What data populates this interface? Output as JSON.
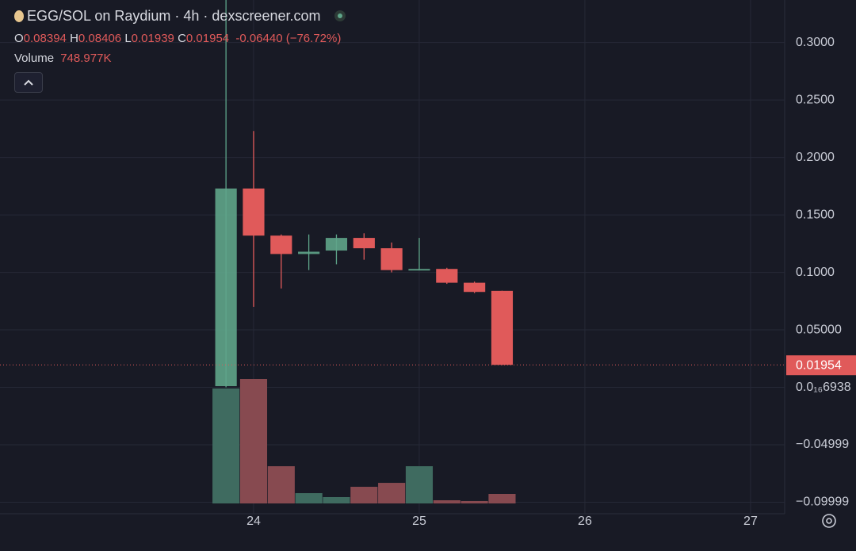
{
  "chart_data": {
    "type": "candlestick",
    "title": "EGG/SOL on Raydium · 4h · dexscreener.com",
    "legend": {
      "o": "O",
      "h": "H",
      "l": "L",
      "c": "C",
      "change": "-0.06440 (−76.72%)",
      "volume": "Volume"
    },
    "x": [
      23.8333,
      24,
      24.1667,
      24.3333,
      24.5,
      24.6667,
      24.8333,
      25,
      25.1667,
      25.3333,
      25.5
    ],
    "open": [
      0.001,
      0.173,
      0.132,
      0.116,
      0.119,
      0.13,
      0.121,
      0.102,
      0.103,
      0.091,
      0.08394
    ],
    "high": [
      0.337,
      0.223,
      0.133,
      0.133,
      0.133,
      0.134,
      0.126,
      0.13,
      0.104,
      0.092,
      0.08406
    ],
    "low": [
      0.0,
      0.07,
      0.086,
      0.102,
      0.107,
      0.111,
      0.1,
      0.102,
      0.09,
      0.082,
      0.01939
    ],
    "close": [
      0.173,
      0.132,
      0.116,
      0.118,
      0.13,
      0.121,
      0.102,
      0.103,
      0.091,
      0.083,
      0.01954
    ],
    "volume": [
      9050000,
      9800000,
      2930000,
      810000,
      500000,
      1310000,
      1620000,
      2930000,
      250000,
      190000,
      748977
    ],
    "volume_label": "748.977K",
    "up_color": "#5fa58a",
    "down_color": "#e05a5a",
    "up_volume_color": "#3f6b60",
    "down_volume_color": "#874a50",
    "xlim": [
      22.469,
      27.206
    ],
    "xticks": [
      24,
      25,
      26,
      27
    ],
    "ylim": [
      -0.11,
      0.337
    ],
    "yticks": [
      {
        "value": 0.3,
        "label": "0.3000"
      },
      {
        "value": 0.25,
        "label": "0.2500"
      },
      {
        "value": 0.2,
        "label": "0.2000"
      },
      {
        "value": 0.15,
        "label": "0.1500"
      },
      {
        "value": 0.1,
        "label": "0.1000"
      },
      {
        "value": 0.05,
        "label": "0.05000"
      },
      {
        "value": 6.938e-18,
        "label": "0.0₁₆6938"
      },
      {
        "value": -0.04999,
        "label": "−0.04999"
      },
      {
        "value": -0.09999,
        "label": "−0.09999"
      }
    ],
    "grid": true
  }
}
